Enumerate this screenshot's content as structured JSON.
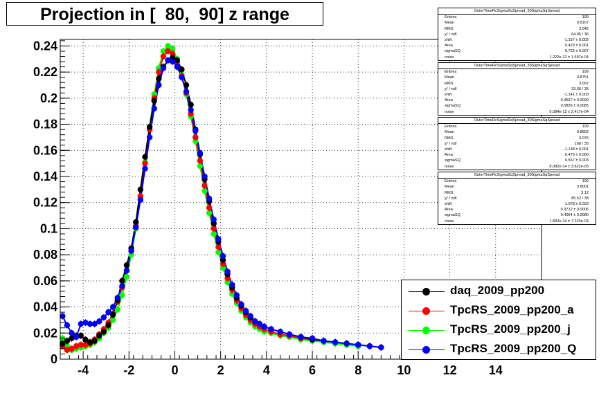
{
  "title": "Projection in [  80,  90] z range",
  "colors": {
    "daq": "#000000",
    "a": "#ff0000",
    "j": "#00ff00",
    "Q": "#0000ff"
  },
  "stats": [
    {
      "title": "OuterTimeRcSigmaSqSpread_30SigmaSqSpread",
      "rows": [
        {
          "k": "Entries",
          "v": "199"
        },
        {
          "k": "Mean",
          "v": "0.8167"
        },
        {
          "k": "RMS",
          "v": "3.042"
        },
        {
          "k": "χ² / ndf",
          "v": "64.05 / 36"
        },
        {
          "k": "shift",
          "v": "-1.157 ± 0.002"
        },
        {
          "k": "Area",
          "v": "0.423 ± 0.001"
        },
        {
          "k": "sigmaSQ",
          "v": "0.722 ± 0.007"
        },
        {
          "k": "noise",
          "v": "1.222e-12 ± 1.697e-04"
        }
      ]
    },
    {
      "title": "OuterTimeRcSigmaSqSpread_30SigmaSqSpread",
      "rows": [
        {
          "k": "Entries",
          "v": "199"
        },
        {
          "k": "Mean",
          "v": "0.8751"
        },
        {
          "k": "RMS",
          "v": "3.097"
        },
        {
          "k": "χ² / ndf",
          "v": "33.36 / 35"
        },
        {
          "k": "shift",
          "v": "-1.141 ± 0.003"
        },
        {
          "k": "Area",
          "v": "0.4657 ± 0.0009"
        },
        {
          "k": "sigmaSQ",
          "v": "0.5826 ± 0.0085"
        },
        {
          "k": "noise",
          "v": "5.084e-12 ± 2.417e-04"
        }
      ]
    },
    {
      "title": "OuterTimeRcSigmaSqSpread_30SigmaSqSpread",
      "rows": [
        {
          "k": "Entries",
          "v": "199"
        },
        {
          "k": "Mean",
          "v": "0.8902"
        },
        {
          "k": "RMS",
          "v": "3.076"
        },
        {
          "k": "χ² / ndf",
          "v": "168 / 35"
        },
        {
          "k": "shift",
          "v": "-1.138 ± 0.001"
        },
        {
          "k": "Area",
          "v": "0.475 ± 0.000"
        },
        {
          "k": "sigmaSQ",
          "v": "0.567 ± 0.003"
        },
        {
          "k": "noise",
          "v": "8.082e-14 ± 3.622e-05"
        }
      ]
    },
    {
      "title": "OuterTimeRcSigmaSqSpread_30SigmaSqSpread",
      "rows": [
        {
          "k": "Entries",
          "v": "199"
        },
        {
          "k": "Mean",
          "v": "0.8001"
        },
        {
          "k": "RMS",
          "v": "3.12"
        },
        {
          "k": "χ² / ndf",
          "v": "85.52 / 38"
        },
        {
          "k": "shift",
          "v": "-1.078 ± 0.003"
        },
        {
          "k": "Area",
          "v": "0.3712 ± 0.0006"
        },
        {
          "k": "sigmaSQ",
          "v": "0.4064 ± 0.0080"
        },
        {
          "k": "noise",
          "v": "1.832e-14 ± 7.223e-04"
        }
      ]
    }
  ],
  "legend": [
    {
      "label": "daq_2009_pp200",
      "color_key": "daq"
    },
    {
      "label": "TpcRS_2009_pp200_a",
      "color_key": "a"
    },
    {
      "label": "TpcRS_2009_pp200_j",
      "color_key": "j"
    },
    {
      "label": "TpcRS_2009_pp200_Q",
      "color_key": "Q"
    }
  ],
  "chart_data": {
    "type": "scatter",
    "title": "Projection in [  80,  90] z range",
    "xlabel": "",
    "ylabel": "",
    "xlim": [
      -5,
      16
    ],
    "ylim": [
      0,
      0.245
    ],
    "x_ticks": [
      -4,
      -2,
      0,
      2,
      4,
      6,
      8,
      10,
      12,
      14
    ],
    "x_tick_labels": [
      "-4",
      "-2",
      "0",
      "2",
      "4",
      "6",
      "8",
      "10",
      "12",
      "14"
    ],
    "y_ticks": [
      0,
      0.02,
      0.04,
      0.06,
      0.08,
      0.1,
      0.12,
      0.14,
      0.16,
      0.18,
      0.2,
      0.22,
      0.24
    ],
    "y_tick_labels": [
      "0",
      "0.02",
      "0.04",
      "0.06",
      "0.08",
      "0.1",
      "0.12",
      "0.14",
      "0.16",
      "0.18",
      "0.2",
      "0.22",
      "0.24"
    ],
    "grid": true,
    "legend_position": "bottom-right",
    "series": [
      {
        "name": "daq_2009_pp200",
        "color_key": "daq",
        "points": [
          [
            -4.9,
            0.012
          ],
          [
            -4.7,
            0.014
          ],
          [
            -4.5,
            0.016
          ],
          [
            -4.3,
            0.018
          ],
          [
            -4.1,
            0.018
          ],
          [
            -3.9,
            0.015
          ],
          [
            -3.7,
            0.013
          ],
          [
            -3.5,
            0.014
          ],
          [
            -3.3,
            0.018
          ],
          [
            -3.1,
            0.021
          ],
          [
            -2.9,
            0.026
          ],
          [
            -2.7,
            0.034
          ],
          [
            -2.5,
            0.045
          ],
          [
            -2.3,
            0.06
          ],
          [
            -2.1,
            0.072
          ],
          [
            -1.9,
            0.085
          ],
          [
            -1.7,
            0.105
          ],
          [
            -1.5,
            0.13
          ],
          [
            -1.3,
            0.155
          ],
          [
            -1.1,
            0.178
          ],
          [
            -0.9,
            0.198
          ],
          [
            -0.7,
            0.215
          ],
          [
            -0.5,
            0.224
          ],
          [
            -0.3,
            0.229
          ],
          [
            -0.1,
            0.231
          ],
          [
            0.1,
            0.229
          ],
          [
            0.3,
            0.222
          ],
          [
            0.5,
            0.21
          ],
          [
            0.7,
            0.195
          ],
          [
            0.9,
            0.176
          ],
          [
            1.1,
            0.157
          ],
          [
            1.3,
            0.138
          ],
          [
            1.5,
            0.121
          ],
          [
            1.7,
            0.104
          ],
          [
            1.9,
            0.09
          ],
          [
            2.1,
            0.076
          ],
          [
            2.3,
            0.065
          ],
          [
            2.5,
            0.055
          ],
          [
            2.7,
            0.047
          ],
          [
            2.9,
            0.041
          ],
          [
            3.1,
            0.036
          ],
          [
            3.3,
            0.032
          ],
          [
            3.5,
            0.029
          ],
          [
            3.7,
            0.027
          ],
          [
            3.9,
            0.025
          ],
          [
            4.2,
            0.023
          ],
          [
            4.6,
            0.021
          ],
          [
            5.0,
            0.019
          ],
          [
            5.5,
            0.017
          ],
          [
            6.0,
            0.015
          ],
          [
            6.5,
            0.014
          ],
          [
            7.0,
            0.013
          ],
          [
            7.5,
            0.012
          ],
          [
            8.0,
            0.011
          ],
          [
            8.5,
            0.01
          ],
          [
            9.0,
            0.009
          ]
        ]
      },
      {
        "name": "TpcRS_2009_pp200_a",
        "color_key": "a",
        "points": [
          [
            -4.9,
            0.01
          ],
          [
            -4.7,
            0.007
          ],
          [
            -4.5,
            0.008
          ],
          [
            -4.3,
            0.01
          ],
          [
            -4.1,
            0.011
          ],
          [
            -3.9,
            0.011
          ],
          [
            -3.7,
            0.012
          ],
          [
            -3.5,
            0.015
          ],
          [
            -3.3,
            0.019
          ],
          [
            -3.1,
            0.023
          ],
          [
            -2.9,
            0.028
          ],
          [
            -2.7,
            0.035
          ],
          [
            -2.5,
            0.044
          ],
          [
            -2.3,
            0.055
          ],
          [
            -2.1,
            0.068
          ],
          [
            -1.9,
            0.083
          ],
          [
            -1.7,
            0.102
          ],
          [
            -1.5,
            0.125
          ],
          [
            -1.3,
            0.15
          ],
          [
            -1.1,
            0.176
          ],
          [
            -0.9,
            0.2
          ],
          [
            -0.7,
            0.22
          ],
          [
            -0.5,
            0.232
          ],
          [
            -0.3,
            0.236
          ],
          [
            -0.1,
            0.234
          ],
          [
            0.1,
            0.228
          ],
          [
            0.3,
            0.217
          ],
          [
            0.5,
            0.204
          ],
          [
            0.7,
            0.188
          ],
          [
            0.9,
            0.17
          ],
          [
            1.1,
            0.152
          ],
          [
            1.3,
            0.133
          ],
          [
            1.5,
            0.116
          ],
          [
            1.7,
            0.1
          ],
          [
            1.9,
            0.086
          ],
          [
            2.1,
            0.073
          ],
          [
            2.3,
            0.062
          ],
          [
            2.5,
            0.053
          ],
          [
            2.7,
            0.045
          ],
          [
            2.9,
            0.039
          ],
          [
            3.1,
            0.034
          ],
          [
            3.3,
            0.03
          ],
          [
            3.5,
            0.027
          ],
          [
            3.7,
            0.025
          ],
          [
            3.9,
            0.023
          ],
          [
            4.2,
            0.021
          ],
          [
            4.6,
            0.019
          ],
          [
            5.0,
            0.018
          ],
          [
            5.5,
            0.016
          ],
          [
            6.0,
            0.015
          ]
        ]
      },
      {
        "name": "TpcRS_2009_pp200_j",
        "color_key": "j",
        "points": [
          [
            -4.9,
            0.016
          ],
          [
            -4.7,
            0.01
          ],
          [
            -4.5,
            0.007
          ],
          [
            -4.3,
            0.008
          ],
          [
            -4.1,
            0.009
          ],
          [
            -3.9,
            0.01
          ],
          [
            -3.7,
            0.011
          ],
          [
            -3.5,
            0.013
          ],
          [
            -3.3,
            0.016
          ],
          [
            -3.1,
            0.02
          ],
          [
            -2.9,
            0.024
          ],
          [
            -2.7,
            0.03
          ],
          [
            -2.5,
            0.038
          ],
          [
            -2.3,
            0.049
          ],
          [
            -2.1,
            0.063
          ],
          [
            -1.9,
            0.08
          ],
          [
            -1.7,
            0.1
          ],
          [
            -1.5,
            0.124
          ],
          [
            -1.3,
            0.151
          ],
          [
            -1.1,
            0.178
          ],
          [
            -0.9,
            0.203
          ],
          [
            -0.7,
            0.223
          ],
          [
            -0.5,
            0.236
          ],
          [
            -0.3,
            0.24
          ],
          [
            -0.1,
            0.238
          ],
          [
            0.1,
            0.23
          ],
          [
            0.3,
            0.218
          ],
          [
            0.5,
            0.203
          ],
          [
            0.7,
            0.186
          ],
          [
            0.9,
            0.167
          ],
          [
            1.1,
            0.148
          ],
          [
            1.3,
            0.129
          ],
          [
            1.5,
            0.112
          ],
          [
            1.7,
            0.096
          ],
          [
            1.9,
            0.082
          ],
          [
            2.1,
            0.07
          ],
          [
            2.3,
            0.059
          ],
          [
            2.5,
            0.05
          ],
          [
            2.7,
            0.043
          ],
          [
            2.9,
            0.037
          ],
          [
            3.1,
            0.032
          ],
          [
            3.3,
            0.028
          ],
          [
            3.5,
            0.025
          ],
          [
            3.7,
            0.023
          ],
          [
            3.9,
            0.021
          ],
          [
            4.2,
            0.02
          ],
          [
            4.6,
            0.018
          ],
          [
            5.0,
            0.017
          ],
          [
            5.5,
            0.015
          ],
          [
            6.0,
            0.014
          ],
          [
            6.5,
            0.013
          ],
          [
            7.0,
            0.012
          ],
          [
            7.5,
            0.011
          ],
          [
            8.0,
            0.01
          ]
        ]
      },
      {
        "name": "TpcRS_2009_pp200_Q",
        "color_key": "Q",
        "points": [
          [
            -4.9,
            0.033
          ],
          [
            -4.7,
            0.026
          ],
          [
            -4.5,
            0.02
          ],
          [
            -4.3,
            0.017
          ],
          [
            -4.1,
            0.027
          ],
          [
            -3.9,
            0.028
          ],
          [
            -3.7,
            0.027
          ],
          [
            -3.5,
            0.027
          ],
          [
            -3.3,
            0.029
          ],
          [
            -3.1,
            0.032
          ],
          [
            -2.9,
            0.036
          ],
          [
            -2.7,
            0.04
          ],
          [
            -2.5,
            0.047
          ],
          [
            -2.3,
            0.056
          ],
          [
            -2.1,
            0.068
          ],
          [
            -1.9,
            0.083
          ],
          [
            -1.7,
            0.101
          ],
          [
            -1.5,
            0.122
          ],
          [
            -1.3,
            0.146
          ],
          [
            -1.1,
            0.17
          ],
          [
            -0.9,
            0.192
          ],
          [
            -0.7,
            0.21
          ],
          [
            -0.5,
            0.223
          ],
          [
            -0.3,
            0.229
          ],
          [
            -0.1,
            0.228
          ],
          [
            0.1,
            0.224
          ],
          [
            0.3,
            0.216
          ],
          [
            0.5,
            0.205
          ],
          [
            0.7,
            0.191
          ],
          [
            0.9,
            0.175
          ],
          [
            1.1,
            0.158
          ],
          [
            1.3,
            0.14
          ],
          [
            1.5,
            0.123
          ],
          [
            1.7,
            0.107
          ],
          [
            1.9,
            0.092
          ],
          [
            2.1,
            0.079
          ],
          [
            2.3,
            0.067
          ],
          [
            2.5,
            0.057
          ],
          [
            2.7,
            0.049
          ],
          [
            2.9,
            0.042
          ],
          [
            3.1,
            0.037
          ],
          [
            3.3,
            0.033
          ],
          [
            3.5,
            0.029
          ],
          [
            3.7,
            0.027
          ],
          [
            3.9,
            0.025
          ],
          [
            4.2,
            0.023
          ],
          [
            4.6,
            0.021
          ],
          [
            5.0,
            0.019
          ],
          [
            5.5,
            0.017
          ],
          [
            6.0,
            0.016
          ],
          [
            6.5,
            0.014
          ],
          [
            7.0,
            0.013
          ],
          [
            7.5,
            0.012
          ],
          [
            8.0,
            0.011
          ],
          [
            8.5,
            0.01
          ],
          [
            9.0,
            0.009
          ]
        ]
      }
    ]
  }
}
